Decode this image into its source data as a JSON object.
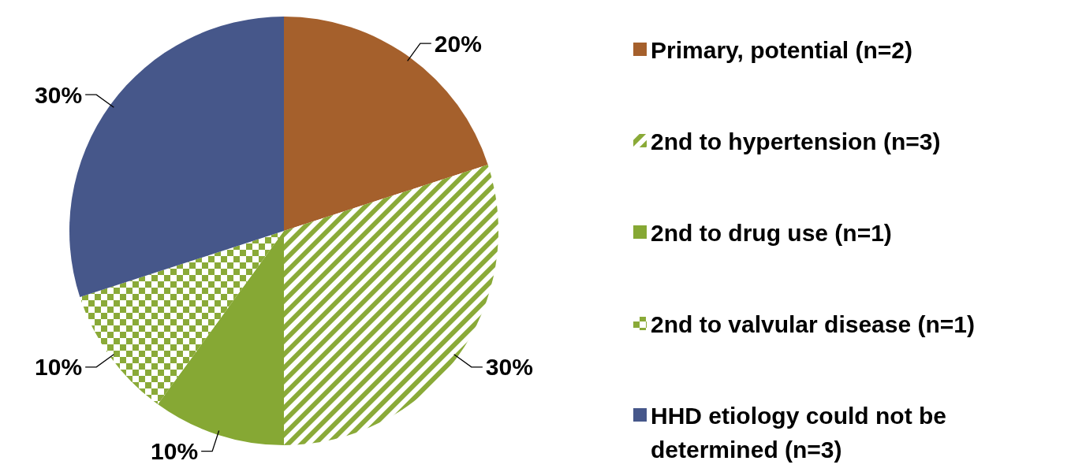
{
  "chart_data": {
    "type": "pie",
    "categories": [
      "Primary, potential (n=2)",
      "2nd to hypertension (n=3)",
      "2nd to drug use (n=1)",
      "2nd to valvular disease (n=1)",
      "HHD etiology could not be determined (n=3)"
    ],
    "values": [
      20,
      30,
      10,
      10,
      30
    ],
    "colors": [
      "#a5602c",
      "#8aaa38",
      "#86a834",
      "#8aaa38",
      "#46578a"
    ],
    "value_labels": [
      "20%",
      "30%",
      "10%",
      "10%",
      "30%"
    ],
    "legend": "right"
  }
}
